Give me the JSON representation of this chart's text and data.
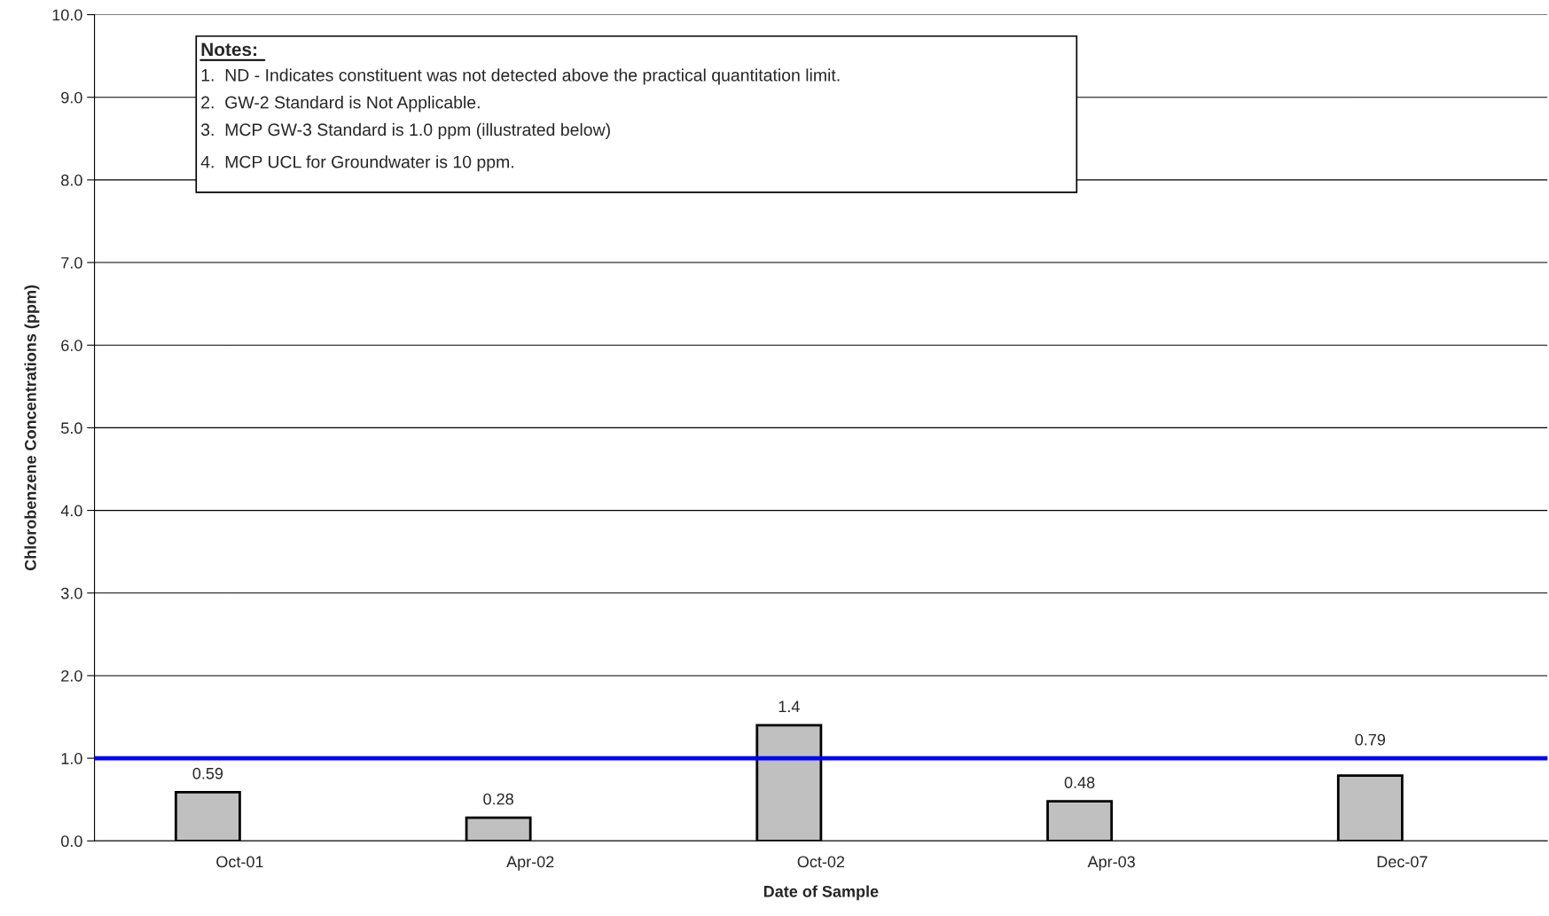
{
  "chart_data": {
    "type": "bar",
    "xlabel": "Date of Sample",
    "ylabel": "Chlorobenzene Concentrations (ppm)",
    "categories": [
      "Oct-01",
      "Apr-02",
      "Oct-02",
      "Apr-03",
      "Dec-07"
    ],
    "values": [
      0.59,
      0.28,
      1.4,
      0.48,
      0.79
    ],
    "color": "#c0c0c0",
    "data_labels": true,
    "ylim": [
      0,
      10
    ],
    "yticks": [
      {
        "value": 0,
        "label": "0.0"
      },
      {
        "value": 1,
        "label": "1.0"
      },
      {
        "value": 2,
        "label": "2.0"
      },
      {
        "value": 3,
        "label": "3.0"
      },
      {
        "value": 4,
        "label": "4.0"
      },
      {
        "value": 5,
        "label": "5.0"
      },
      {
        "value": 6,
        "label": "6.0"
      },
      {
        "value": 7,
        "label": "7.0"
      },
      {
        "value": 8,
        "label": "8.0"
      },
      {
        "value": 9,
        "label": "9.0"
      },
      {
        "value": 10,
        "label": "10.0"
      }
    ],
    "grid": "y",
    "ref_lines": [
      {
        "axis": "y",
        "value": 1.0,
        "color": "#0000ff",
        "line_style": "solid"
      }
    ],
    "annotations": [
      "Notes:",
      "1.  ND - Indicates constituent was not detected above the practical quantitation limit.",
      "2.  GW-2 Standard is Not Applicable.",
      "3.  MCP GW-3 Standard is 1.0 ppm (illustrated below)",
      "4.  MCP UCL for Groundwater is 10 ppm."
    ]
  }
}
